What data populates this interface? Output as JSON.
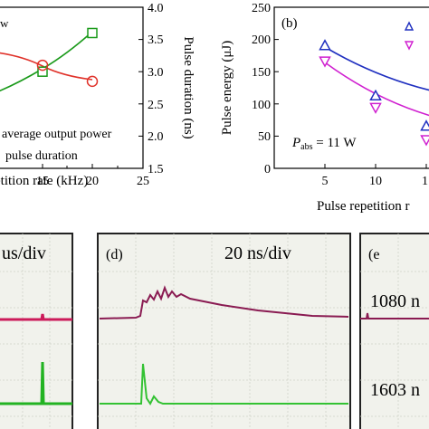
{
  "chart_data": [
    {
      "type": "line",
      "panel": "a",
      "xlabel": "etition rate (kHz)",
      "ylabel_right": "Pulse duration (ns)",
      "x_ticks": [
        "15",
        "20",
        "25"
      ],
      "y_right_ticks": [
        "1.5",
        "2.0",
        "2.5",
        "3.0",
        "3.5",
        "4.0"
      ],
      "ylim_right": [
        1.5,
        4.0
      ],
      "legend": [
        "average output power",
        "pulse duration"
      ],
      "top_label": "w",
      "series": [
        {
          "marker": "square",
          "color": "#1a9a1a",
          "x": [
            15,
            20
          ],
          "y": [
            3.0,
            3.6
          ]
        },
        {
          "marker": "circle",
          "color": "#e0322a",
          "x": [
            15,
            20
          ],
          "y": [
            3.1,
            2.85
          ]
        }
      ]
    },
    {
      "type": "line",
      "panel": "(b)",
      "xlabel": "Pulse repetition r",
      "ylabel": "Pulse energy (μJ)",
      "x_ticks": [
        "5",
        "10",
        "1"
      ],
      "y_ticks": [
        "0",
        "50",
        "100",
        "150",
        "200",
        "250"
      ],
      "ylim": [
        0,
        250
      ],
      "annotation_main": "P",
      "annotation_sub": "abs",
      "annotation_rest": " = 11 W",
      "series": [
        {
          "marker": "triangle-up",
          "color": "#2030c0",
          "x": [
            5,
            10,
            15
          ],
          "y": [
            190,
            112,
            65
          ]
        },
        {
          "marker": "triangle-down",
          "color": "#d020d0",
          "x": [
            5,
            10,
            15
          ],
          "y": [
            167,
            95,
            45
          ]
        }
      ]
    }
  ],
  "scope_panels": [
    {
      "label": "us/div",
      "trace_colors": [
        "#cc1b5a",
        "#22b322"
      ]
    },
    {
      "label": "(d)",
      "timebase": "20 ns/div",
      "trace_colors": [
        "#8a1b52",
        "#33c233"
      ]
    },
    {
      "label": "(e",
      "wavelengths": [
        "1080 n",
        "1603 n"
      ],
      "wavelength_colors": [
        "#8a1b52",
        "#33c233"
      ]
    }
  ]
}
